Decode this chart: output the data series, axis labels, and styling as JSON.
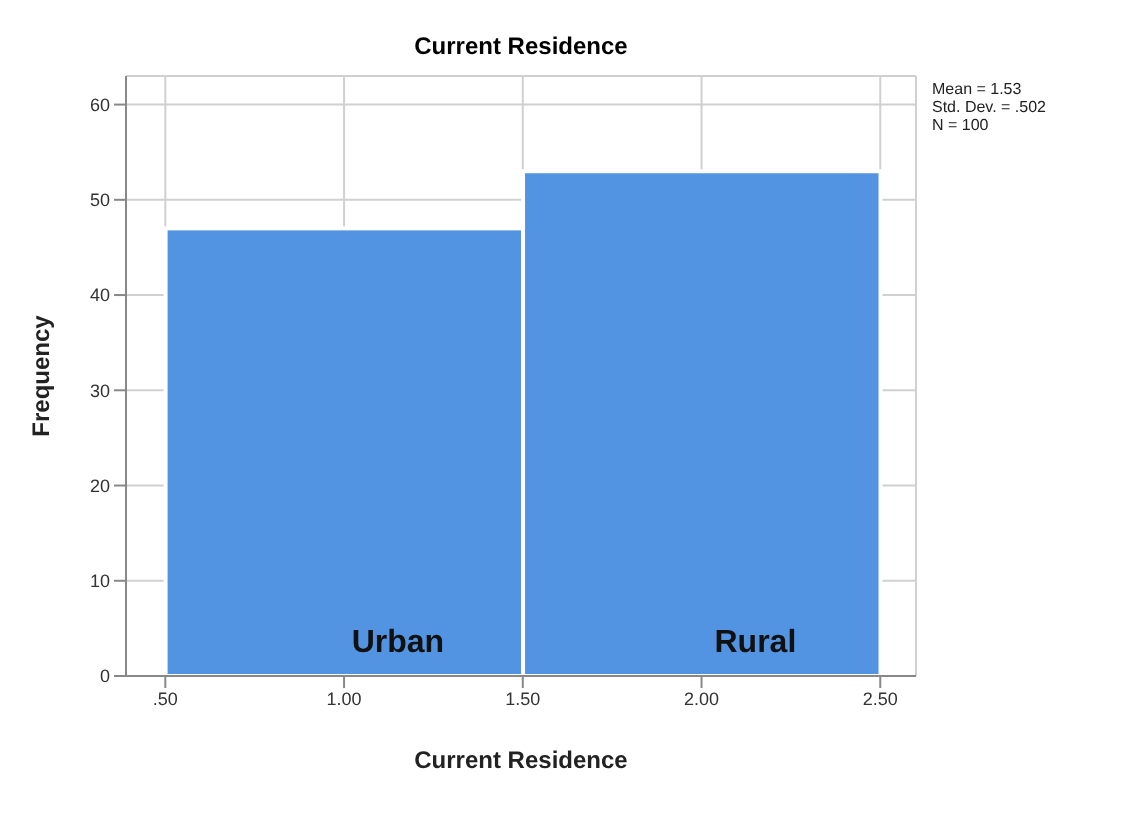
{
  "chart_data": {
    "type": "histogram",
    "title": "Current Residence",
    "xlabel": "Current Residence",
    "ylabel": "Frequency",
    "bins": [
      0.5,
      1.5,
      2.5
    ],
    "values": [
      47,
      53
    ],
    "color": "#5294e2",
    "xlim": [
      0.39,
      2.6
    ],
    "xticks": [
      {
        "value": 0.5,
        "label": ".50"
      },
      {
        "value": 1,
        "label": "1.00"
      },
      {
        "value": 1.5,
        "label": "1.50"
      },
      {
        "value": 2,
        "label": "2.00"
      },
      {
        "value": 2.5,
        "label": "2.50"
      }
    ],
    "ylim": [
      0,
      63
    ],
    "yticks": [
      0,
      10,
      20,
      30,
      40,
      50,
      60
    ],
    "grid": true,
    "annotations": [
      "Mean = 1.53",
      "Std. Dev. = .502",
      "N = 100",
      "Urban",
      "Rural"
    ]
  }
}
